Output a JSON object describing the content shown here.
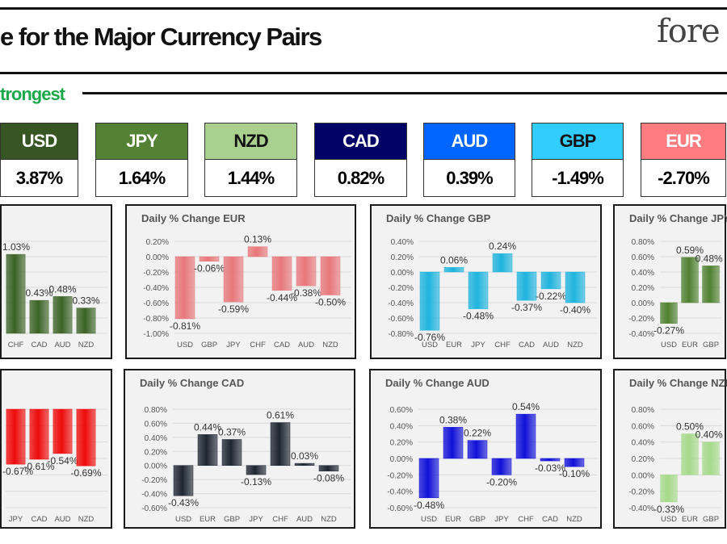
{
  "header": {
    "title": "e for the Major Currency Pairs",
    "logo_text": "fore",
    "subtitle": "trongest"
  },
  "strength": [
    {
      "currency": "USD",
      "value": "3.87%",
      "color": "#375623",
      "text_color": "#ffffff"
    },
    {
      "currency": "JPY",
      "value": "1.64%",
      "color": "#548235",
      "text_color": "#ffffff"
    },
    {
      "currency": "NZD",
      "value": "1.44%",
      "color": "#a9d08e",
      "text_color": "#111111"
    },
    {
      "currency": "CAD",
      "value": "0.82%",
      "color": "#000066",
      "text_color": "#ffffff"
    },
    {
      "currency": "AUD",
      "value": "0.39%",
      "color": "#0066ff",
      "text_color": "#ffffff"
    },
    {
      "currency": "GBP",
      "value": "-1.49%",
      "color": "#33ccff",
      "text_color": "#111111"
    },
    {
      "currency": "EUR",
      "value": "-2.70%",
      "color": "#ff7c80",
      "text_color": "#ffffff"
    }
  ],
  "chart_data": [
    {
      "type": "bar",
      "title": "",
      "categories": [
        "CHF",
        "CAD",
        "AUD",
        "NZD"
      ],
      "values": [
        1.03,
        0.43,
        0.48,
        0.33
      ],
      "labels": [
        "1.03%",
        "0.43%",
        "0.48%",
        "0.33%"
      ],
      "ylim": [
        0,
        1.2
      ],
      "color": "#3b6326",
      "yticks_visible": false
    },
    {
      "type": "bar",
      "title": "Daily % Change EUR",
      "categories": [
        "USD",
        "GBP",
        "JPY",
        "CHF",
        "CAD",
        "AUD",
        "NZD"
      ],
      "values": [
        -0.81,
        -0.06,
        -0.59,
        0.13,
        -0.44,
        -0.38,
        -0.5
      ],
      "labels": [
        "-0.81%",
        "-0.06%",
        "-0.59%",
        "0.13%",
        "-0.44%",
        "-0.38%",
        "-0.50%"
      ],
      "ylim": [
        -1.0,
        0.2
      ],
      "yticks": [
        "0.20%",
        "0.00%",
        "-0.20%",
        "-0.40%",
        "-0.60%",
        "-0.80%",
        "-1.00%"
      ],
      "color": "#e8777a",
      "grid": true
    },
    {
      "type": "bar",
      "title": "Daily % Change GBP",
      "categories": [
        "USD",
        "EUR",
        "JPY",
        "CHF",
        "CAD",
        "AUD",
        "NZD"
      ],
      "values": [
        -0.76,
        0.06,
        -0.48,
        0.24,
        -0.37,
        -0.22,
        -0.4
      ],
      "labels": [
        "-0.76%",
        "0.06%",
        "-0.48%",
        "0.24%",
        "-0.37%",
        "-0.22%",
        "-0.40%"
      ],
      "ylim": [
        -0.8,
        0.4
      ],
      "yticks": [
        "0.40%",
        "0.20%",
        "0.00%",
        "-0.20%",
        "-0.40%",
        "-0.60%",
        "-0.80%"
      ],
      "color": "#1fb4de",
      "grid": true
    },
    {
      "type": "bar",
      "title": "Daily % Change JPY",
      "categories": [
        "USD",
        "EUR",
        "GBP"
      ],
      "values": [
        -0.27,
        0.59,
        0.48
      ],
      "labels": [
        "-0.27%",
        "0.59%",
        "0.48%"
      ],
      "ylim": [
        -0.4,
        0.8
      ],
      "yticks": [
        "0.80%",
        "0.60%",
        "0.40%",
        "0.20%",
        "0.00%",
        "-0.20%",
        "-0.40%"
      ],
      "color": "#4f8030",
      "grid": true
    },
    {
      "type": "bar",
      "title": "",
      "categories": [
        "JPY",
        "CAD",
        "AUD",
        "NZD"
      ],
      "values": [
        -0.67,
        -0.61,
        -0.54,
        -0.69
      ],
      "labels": [
        "-0.67%",
        "-0.61%",
        "-0.54%",
        "-0.69%"
      ],
      "ylim": [
        -1.2,
        0
      ],
      "color": "#ee0a0a",
      "yticks_visible": false
    },
    {
      "type": "bar",
      "title": "Daily % Change CAD",
      "categories": [
        "USD",
        "EUR",
        "GBP",
        "JPY",
        "CHF",
        "AUD",
        "NZD"
      ],
      "values": [
        -0.43,
        0.44,
        0.37,
        -0.13,
        0.61,
        0.03,
        -0.08
      ],
      "labels": [
        "-0.43%",
        "0.44%",
        "0.37%",
        "-0.13%",
        "0.61%",
        "0.03%",
        "-0.08%"
      ],
      "ylim": [
        -0.6,
        0.8
      ],
      "yticks": [
        "0.80%",
        "0.60%",
        "0.40%",
        "0.20%",
        "0.00%",
        "-0.20%",
        "-0.40%",
        "-0.60%"
      ],
      "color": "#1e2633",
      "grid": true
    },
    {
      "type": "bar",
      "title": "Daily % Change AUD",
      "categories": [
        "USD",
        "EUR",
        "GBP",
        "JPY",
        "CHF",
        "CAD",
        "NZD"
      ],
      "values": [
        -0.48,
        0.38,
        0.22,
        -0.2,
        0.54,
        -0.03,
        -0.1
      ],
      "labels": [
        "-0.48%",
        "0.38%",
        "0.22%",
        "-0.20%",
        "0.54%",
        "-0.03%",
        "-0.10%"
      ],
      "ylim": [
        -0.6,
        0.6
      ],
      "yticks": [
        "0.60%",
        "0.40%",
        "0.20%",
        "0.00%",
        "-0.20%",
        "-0.40%",
        "-0.60%"
      ],
      "color": "#1010d8",
      "grid": true
    },
    {
      "type": "bar",
      "title": "Daily % Change NZD",
      "categories": [
        "USD",
        "EUR",
        "GBP"
      ],
      "values": [
        -0.33,
        0.5,
        0.4
      ],
      "labels": [
        "-0.33%",
        "0.50%",
        "0.40%"
      ],
      "ylim": [
        -0.4,
        0.8
      ],
      "yticks": [
        "0.80%",
        "0.60%",
        "0.40%",
        "0.20%",
        "0.00%",
        "-0.20%",
        "-0.40%"
      ],
      "color": "#a6d98a",
      "grid": true
    }
  ]
}
